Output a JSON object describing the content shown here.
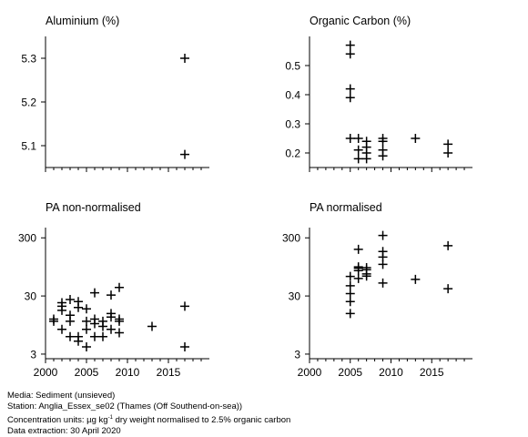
{
  "chart_data": [
    {
      "type": "scatter",
      "title": "Aluminium (%)",
      "scale": "linear",
      "ylim": [
        5.05,
        5.35
      ],
      "xlim": [
        2000,
        2020
      ],
      "yticks": [
        5.1,
        5.2,
        5.3
      ],
      "ytick_labels": [
        "5.1",
        "5.2",
        "5.3"
      ],
      "xticks": [
        2000,
        2005,
        2010,
        2015
      ],
      "xtick_labels": [],
      "points": [
        [
          2017,
          5.3
        ],
        [
          2017,
          5.08
        ]
      ]
    },
    {
      "type": "scatter",
      "title": "Organic Carbon (%)",
      "scale": "linear",
      "ylim": [
        0.15,
        0.6
      ],
      "xlim": [
        2000,
        2020
      ],
      "yticks": [
        0.2,
        0.3,
        0.4,
        0.5
      ],
      "ytick_labels": [
        "0.2",
        "0.3",
        "0.4",
        "0.5"
      ],
      "xticks": [
        2000,
        2005,
        2010,
        2015
      ],
      "xtick_labels": [],
      "points": [
        [
          2005,
          0.57
        ],
        [
          2005,
          0.54
        ],
        [
          2005,
          0.42
        ],
        [
          2005,
          0.39
        ],
        [
          2005,
          0.25
        ],
        [
          2006,
          0.25
        ],
        [
          2006,
          0.21
        ],
        [
          2006,
          0.18
        ],
        [
          2007,
          0.24
        ],
        [
          2007,
          0.22
        ],
        [
          2007,
          0.2
        ],
        [
          2007,
          0.18
        ],
        [
          2009,
          0.25
        ],
        [
          2009,
          0.24
        ],
        [
          2009,
          0.21
        ],
        [
          2009,
          0.19
        ],
        [
          2013,
          0.25
        ],
        [
          2017,
          0.23
        ],
        [
          2017,
          0.2
        ]
      ]
    },
    {
      "type": "scatter",
      "title": "PA non-normalised",
      "scale": "log",
      "ylim": [
        2.5,
        450
      ],
      "xlim": [
        2000,
        2020
      ],
      "yticks": [
        3,
        30,
        300
      ],
      "ytick_labels": [
        "3",
        "30",
        "300"
      ],
      "xticks": [
        2000,
        2005,
        2010,
        2015
      ],
      "xtick_labels": [
        "2000",
        "2005",
        "2010",
        "2015"
      ],
      "points": [
        [
          2001,
          12
        ],
        [
          2001,
          11
        ],
        [
          2002,
          23
        ],
        [
          2002,
          20
        ],
        [
          2002,
          17
        ],
        [
          2002,
          8
        ],
        [
          2003,
          26
        ],
        [
          2003,
          14
        ],
        [
          2003,
          11
        ],
        [
          2003,
          6
        ],
        [
          2004,
          24
        ],
        [
          2004,
          19
        ],
        [
          2004,
          6
        ],
        [
          2004,
          5
        ],
        [
          2005,
          18
        ],
        [
          2005,
          11
        ],
        [
          2005,
          8
        ],
        [
          2005,
          4
        ],
        [
          2006,
          34
        ],
        [
          2006,
          12
        ],
        [
          2006,
          10
        ],
        [
          2006,
          6
        ],
        [
          2007,
          11
        ],
        [
          2007,
          9
        ],
        [
          2007,
          6
        ],
        [
          2008,
          31
        ],
        [
          2008,
          15
        ],
        [
          2008,
          13
        ],
        [
          2008,
          8
        ],
        [
          2009,
          42
        ],
        [
          2009,
          12
        ],
        [
          2009,
          11
        ],
        [
          2009,
          7
        ],
        [
          2013,
          9
        ],
        [
          2017,
          20
        ],
        [
          2017,
          4
        ]
      ]
    },
    {
      "type": "scatter",
      "title": "PA normalised",
      "scale": "log",
      "ylim": [
        2.5,
        450
      ],
      "xlim": [
        2000,
        2020
      ],
      "yticks": [
        3,
        30,
        300
      ],
      "ytick_labels": [
        "3",
        "30",
        "300"
      ],
      "xticks": [
        2000,
        2005,
        2010,
        2015
      ],
      "xtick_labels": [
        "2000",
        "2005",
        "2010",
        "2015"
      ],
      "points": [
        [
          2005,
          65
        ],
        [
          2005,
          45
        ],
        [
          2005,
          33
        ],
        [
          2005,
          24
        ],
        [
          2005,
          15
        ],
        [
          2006,
          190
        ],
        [
          2006,
          95
        ],
        [
          2006,
          90
        ],
        [
          2006,
          82
        ],
        [
          2006,
          60
        ],
        [
          2007,
          92
        ],
        [
          2007,
          85
        ],
        [
          2007,
          72
        ],
        [
          2007,
          66
        ],
        [
          2009,
          330
        ],
        [
          2009,
          175
        ],
        [
          2009,
          140
        ],
        [
          2009,
          105
        ],
        [
          2009,
          50
        ],
        [
          2013,
          58
        ],
        [
          2017,
          220
        ],
        [
          2017,
          40
        ]
      ]
    }
  ],
  "footer": {
    "media": "Media: Sediment (unsieved)",
    "station": "Station: Anglia_Essex_se02 (Thames (Off Southend-on-sea))",
    "units_prefix": "Concentration units: ",
    "units_mu": "µ",
    "units_g": "g kg",
    "units_sup": "-1",
    "units_suffix": " dry weight normalised to 2.5% organic carbon",
    "extraction": "Data extraction: 30 April 2020"
  }
}
